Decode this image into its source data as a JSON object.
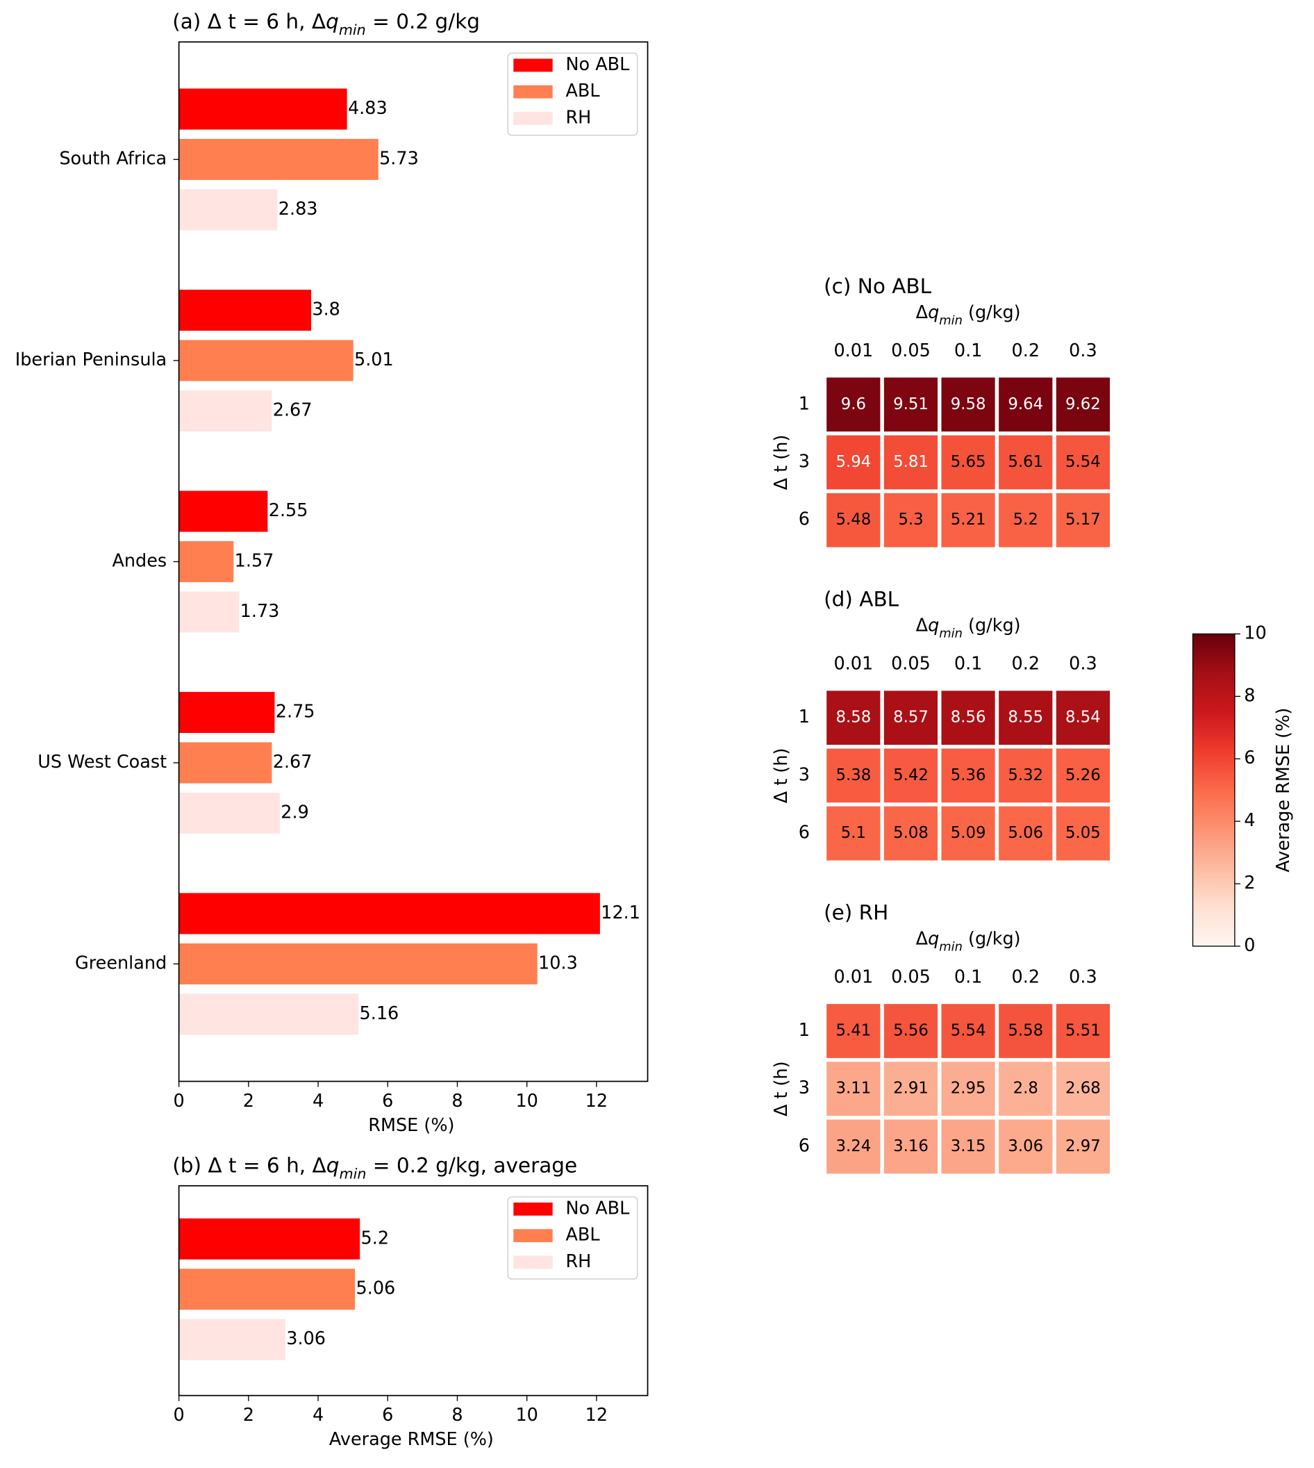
{
  "chart_data": [
    {
      "type": "bar",
      "orientation": "horizontal",
      "title": {
        "prefix": "(a) Δ t = 6 h, Δ",
        "symbol": "q",
        "subscript": "min",
        "suffix": " = 0.2 g/kg"
      },
      "categories": [
        "South Africa",
        "Iberian Peninsula",
        "Andes",
        "US West Coast",
        "Greenland"
      ],
      "series": [
        {
          "name": "No ABL",
          "color": "#ff0000",
          "values": [
            4.83,
            3.8,
            2.55,
            2.75,
            12.1
          ]
        },
        {
          "name": "ABL",
          "color": "#ff7f50",
          "values": [
            5.73,
            5.01,
            1.57,
            2.67,
            10.3
          ]
        },
        {
          "name": "RH",
          "color": "#ffe4e1",
          "values": [
            2.83,
            2.67,
            1.73,
            2.9,
            5.16
          ]
        }
      ],
      "xlim": [
        0,
        13.47
      ],
      "xticks": [
        0,
        2,
        4,
        6,
        8,
        10,
        12
      ],
      "xlabel": "RMSE (%)",
      "legend": "upper right"
    },
    {
      "type": "bar",
      "orientation": "horizontal",
      "title": {
        "prefix": "(b) Δ t = 6 h, Δ",
        "symbol": "q",
        "subscript": "min",
        "suffix": " = 0.2 g/kg, average"
      },
      "categories": [
        null
      ],
      "series": [
        {
          "name": "No ABL",
          "color": "#ff0000",
          "values": [
            5.2
          ]
        },
        {
          "name": "ABL",
          "color": "#ff7f50",
          "values": [
            5.06
          ]
        },
        {
          "name": "RH",
          "color": "#ffe4e1",
          "values": [
            3.06
          ]
        }
      ],
      "xlim": [
        0,
        13.47
      ],
      "xticks": [
        0,
        2,
        4,
        6,
        8,
        10,
        12
      ],
      "xlabel": "Average RMSE (%)",
      "legend": "upper right"
    },
    {
      "type": "heatmap",
      "title": "(c) No ABL",
      "xlabel": {
        "prefix": "Δ",
        "symbol": "q",
        "subscript": "min",
        "suffix": " (g/kg)"
      },
      "x": [
        "0.01",
        "0.05",
        "0.1",
        "0.2",
        "0.3"
      ],
      "ylabel": "Δ t (h)",
      "y": [
        "1",
        "3",
        "6"
      ],
      "values": [
        [
          9.6,
          9.51,
          9.58,
          9.64,
          9.62
        ],
        [
          5.94,
          5.81,
          5.65,
          5.61,
          5.54
        ],
        [
          5.48,
          5.3,
          5.21,
          5.2,
          5.17
        ]
      ]
    },
    {
      "type": "heatmap",
      "title": "(d) ABL",
      "xlabel": {
        "prefix": "Δ",
        "symbol": "q",
        "subscript": "min",
        "suffix": " (g/kg)"
      },
      "x": [
        "0.01",
        "0.05",
        "0.1",
        "0.2",
        "0.3"
      ],
      "ylabel": "Δ t (h)",
      "y": [
        "1",
        "3",
        "6"
      ],
      "values": [
        [
          8.58,
          8.57,
          8.56,
          8.55,
          8.54
        ],
        [
          5.38,
          5.42,
          5.36,
          5.32,
          5.26
        ],
        [
          5.1,
          5.08,
          5.09,
          5.06,
          5.05
        ]
      ]
    },
    {
      "type": "heatmap",
      "title": "(e) RH",
      "xlabel": {
        "prefix": "Δ",
        "symbol": "q",
        "subscript": "min",
        "suffix": " (g/kg)"
      },
      "x": [
        "0.01",
        "0.05",
        "0.1",
        "0.2",
        "0.3"
      ],
      "ylabel": "Δ t (h)",
      "y": [
        "1",
        "3",
        "6"
      ],
      "values": [
        [
          5.41,
          5.56,
          5.54,
          5.58,
          5.51
        ],
        [
          3.11,
          2.91,
          2.95,
          2.8,
          2.68
        ],
        [
          3.24,
          3.16,
          3.15,
          3.06,
          2.97
        ]
      ]
    },
    {
      "type": "colorbar",
      "label": "Average RMSE (%)",
      "ylim": [
        0,
        10
      ],
      "yticks": [
        0,
        2,
        4,
        6,
        8,
        10
      ],
      "colormap": [
        "#fff5f0",
        "#fee0d2",
        "#fcbba1",
        "#fc9272",
        "#fb6a4a",
        "#ef3b2c",
        "#cb181d",
        "#a50f15",
        "#67000d"
      ]
    }
  ]
}
